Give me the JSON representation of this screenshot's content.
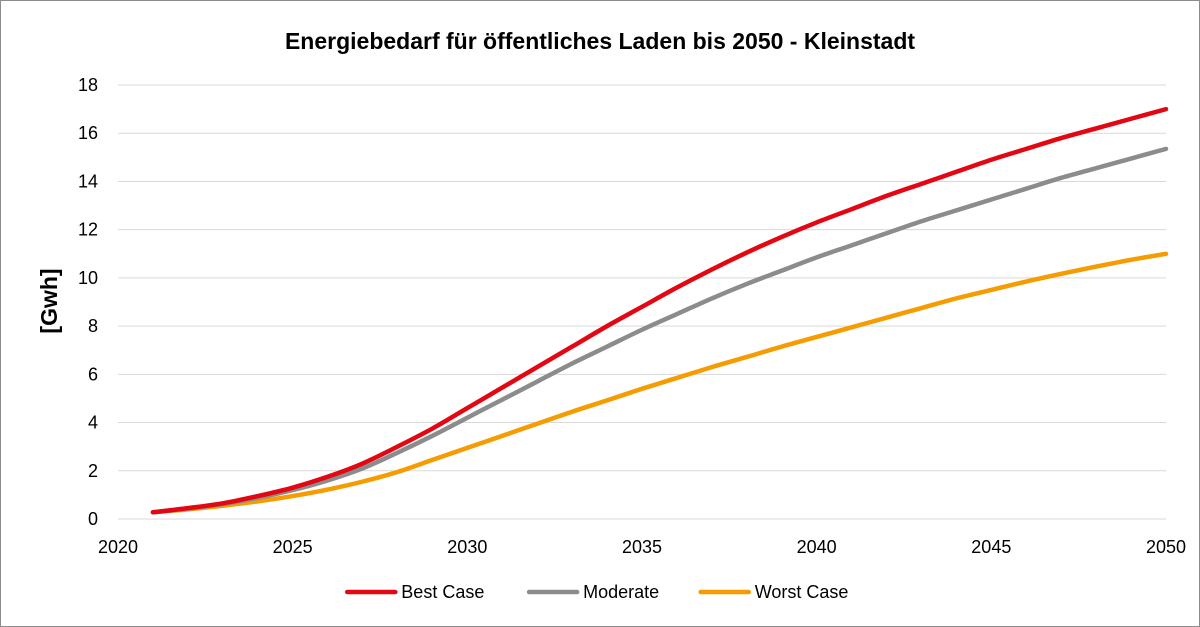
{
  "chart_data": {
    "type": "line",
    "title": "Energiebedarf für öffentliches Laden bis 2050 - Kleinstadt",
    "ylabel": "[Gwh]",
    "xlabel": "",
    "xlim": [
      2020,
      2050
    ],
    "ylim": [
      0,
      18
    ],
    "x_ticks": [
      "2020",
      "2025",
      "2030",
      "2035",
      "2040",
      "2045",
      "2050"
    ],
    "y_ticks": [
      "0",
      "2",
      "4",
      "6",
      "8",
      "10",
      "12",
      "14",
      "16",
      "18"
    ],
    "grid": "horizontal",
    "legend_position": "bottom",
    "x": [
      2021,
      2022,
      2023,
      2024,
      2025,
      2026,
      2027,
      2028,
      2029,
      2030,
      2031,
      2032,
      2033,
      2034,
      2035,
      2036,
      2037,
      2038,
      2039,
      2040,
      2041,
      2042,
      2043,
      2044,
      2045,
      2046,
      2047,
      2048,
      2049,
      2050
    ],
    "series": [
      {
        "name": "Best Case",
        "color": "#e30613",
        "values": [
          0.28,
          0.45,
          0.65,
          0.95,
          1.3,
          1.75,
          2.3,
          3.0,
          3.75,
          4.6,
          5.45,
          6.3,
          7.15,
          8.0,
          8.8,
          9.6,
          10.35,
          11.05,
          11.7,
          12.3,
          12.85,
          13.4,
          13.9,
          14.4,
          14.9,
          15.35,
          15.8,
          16.2,
          16.6,
          17.0
        ]
      },
      {
        "name": "Moderate",
        "color": "#8c8c8c",
        "values": [
          0.28,
          0.43,
          0.62,
          0.88,
          1.2,
          1.6,
          2.1,
          2.75,
          3.45,
          4.2,
          4.95,
          5.7,
          6.45,
          7.15,
          7.85,
          8.5,
          9.15,
          9.75,
          10.3,
          10.85,
          11.35,
          11.85,
          12.35,
          12.8,
          13.25,
          13.7,
          14.15,
          14.55,
          14.95,
          15.35
        ]
      },
      {
        "name": "Worst Case",
        "color": "#f59c00",
        "values": [
          0.28,
          0.4,
          0.55,
          0.73,
          0.95,
          1.22,
          1.55,
          1.95,
          2.45,
          2.95,
          3.45,
          3.95,
          4.45,
          4.92,
          5.4,
          5.85,
          6.3,
          6.72,
          7.15,
          7.55,
          7.95,
          8.35,
          8.75,
          9.15,
          9.5,
          9.85,
          10.17,
          10.47,
          10.75,
          11.0
        ]
      }
    ]
  }
}
